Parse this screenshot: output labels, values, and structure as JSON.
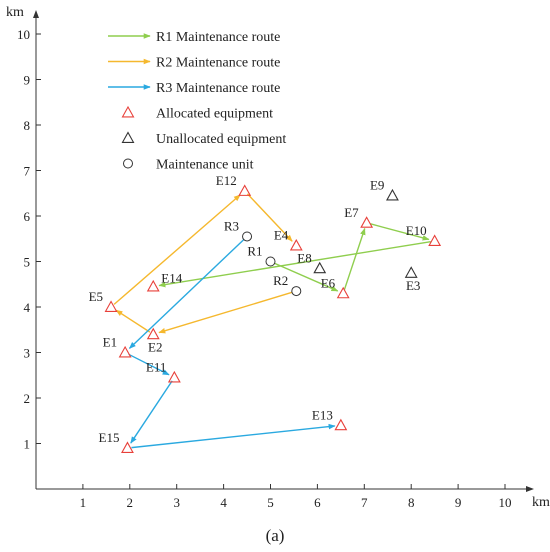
{
  "figure": {
    "caption": "(a)"
  },
  "chart_data": {
    "type": "scatter",
    "xlabel": "km",
    "ylabel": "km",
    "xlim": [
      0,
      10.6
    ],
    "ylim": [
      0,
      10.6
    ],
    "xticks": [
      1,
      2,
      3,
      4,
      5,
      6,
      7,
      8,
      9,
      10
    ],
    "yticks": [
      1,
      2,
      3,
      4,
      5,
      6,
      7,
      8,
      9,
      10
    ],
    "grid": false,
    "legend_placement": "top-left",
    "legend": [
      {
        "label": "R1 Maintenance route",
        "kind": "arrow",
        "color": "#8fce4e"
      },
      {
        "label": "R2 Maintenance route",
        "kind": "arrow",
        "color": "#f5b82e"
      },
      {
        "label": "R3 Maintenance route",
        "kind": "arrow",
        "color": "#2aa9e0"
      },
      {
        "label": "Allocated equipment",
        "kind": "triangle",
        "color": "#e8403a"
      },
      {
        "label": "Unallocated equipment",
        "kind": "triangle",
        "color": "#333333"
      },
      {
        "label": "Maintenance unit",
        "kind": "circle",
        "color": "#333333"
      }
    ],
    "units": [
      {
        "name": "R1",
        "x": 5.0,
        "y": 5.0,
        "label_pos": "left"
      },
      {
        "name": "R2",
        "x": 5.55,
        "y": 4.35,
        "label_pos": "left"
      },
      {
        "name": "R3",
        "x": 4.5,
        "y": 5.55,
        "label_pos": "left"
      }
    ],
    "equipment": [
      {
        "name": "E1",
        "x": 1.9,
        "y": 3.0,
        "allocated": true,
        "label_pos": "left"
      },
      {
        "name": "E2",
        "x": 2.5,
        "y": 3.4,
        "allocated": true,
        "label_pos": "below"
      },
      {
        "name": "E3",
        "x": 8.0,
        "y": 4.75,
        "allocated": false,
        "label_pos": "below"
      },
      {
        "name": "E4",
        "x": 5.55,
        "y": 5.35,
        "allocated": true,
        "label_pos": "left"
      },
      {
        "name": "E5",
        "x": 1.6,
        "y": 4.0,
        "allocated": true,
        "label_pos": "left"
      },
      {
        "name": "E6",
        "x": 6.55,
        "y": 4.3,
        "allocated": true,
        "label_pos": "left"
      },
      {
        "name": "E7",
        "x": 7.05,
        "y": 5.85,
        "allocated": true,
        "label_pos": "left"
      },
      {
        "name": "E8",
        "x": 6.05,
        "y": 4.85,
        "allocated": false,
        "label_pos": "left"
      },
      {
        "name": "E9",
        "x": 7.6,
        "y": 6.45,
        "allocated": false,
        "label_pos": "left"
      },
      {
        "name": "E10",
        "x": 8.5,
        "y": 5.45,
        "allocated": true,
        "label_pos": "left"
      },
      {
        "name": "E11",
        "x": 2.95,
        "y": 2.45,
        "allocated": true,
        "label_pos": "left"
      },
      {
        "name": "E12",
        "x": 4.45,
        "y": 6.55,
        "allocated": true,
        "label_pos": "left"
      },
      {
        "name": "E13",
        "x": 6.5,
        "y": 1.4,
        "allocated": true,
        "label_pos": "left"
      },
      {
        "name": "E14",
        "x": 2.5,
        "y": 4.45,
        "allocated": true,
        "label_pos": "right"
      },
      {
        "name": "E15",
        "x": 1.95,
        "y": 0.9,
        "allocated": true,
        "label_pos": "left"
      }
    ],
    "series": [
      {
        "name": "R1 Maintenance route",
        "color": "#8fce4e",
        "path": [
          "R1",
          "E6",
          "E7",
          "E10",
          "E14"
        ]
      },
      {
        "name": "R2 Maintenance route",
        "color": "#f5b82e",
        "path": [
          "R2",
          "E2",
          "E5",
          "E12",
          "E4"
        ]
      },
      {
        "name": "R3 Maintenance route",
        "color": "#2aa9e0",
        "path": [
          "R3",
          "E1",
          "E11",
          "E15",
          "E13"
        ]
      }
    ]
  }
}
